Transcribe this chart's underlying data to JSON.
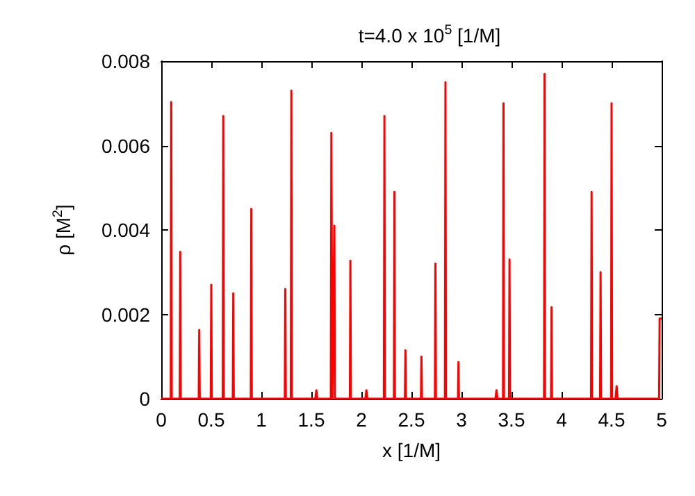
{
  "chart_data": {
    "type": "line",
    "title": "t=4.0 x 10$^{5}$ [1/M]",
    "xlabel": "x [1/M]",
    "ylabel": "ρ [M$^{2}$]",
    "x": [
      0,
      0.095,
      0.1,
      0.105,
      0.185,
      0.19,
      0.195,
      0.375,
      0.38,
      0.385,
      0.495,
      0.5,
      0.505,
      0.615,
      0.62,
      0.625,
      0.715,
      0.72,
      0.725,
      0.895,
      0.9,
      0.905,
      1.235,
      1.24,
      1.245,
      1.295,
      1.3,
      1.305,
      1.54,
      1.55,
      1.56,
      1.695,
      1.7,
      1.71,
      1.73,
      1.735,
      1.885,
      1.89,
      1.895,
      2.04,
      2.05,
      2.06,
      2.225,
      2.23,
      2.235,
      2.325,
      2.33,
      2.335,
      2.435,
      2.44,
      2.445,
      2.595,
      2.6,
      2.605,
      2.735,
      2.74,
      2.745,
      2.835,
      2.84,
      2.845,
      2.965,
      2.97,
      2.975,
      3.34,
      3.35,
      3.36,
      3.415,
      3.42,
      3.425,
      3.475,
      3.48,
      3.485,
      3.825,
      3.83,
      3.835,
      3.895,
      3.9,
      3.905,
      4.295,
      4.3,
      4.305,
      4.385,
      4.39,
      4.395,
      4.495,
      4.5,
      4.505,
      4.54,
      4.55,
      4.56,
      4.975,
      4.98,
      5
    ],
    "series": [
      {
        "color": "#ff0000",
        "values": [
          0,
          0,
          0.00703,
          0,
          0,
          0.00348,
          0,
          0,
          0.00163,
          0,
          0,
          0.0027,
          0,
          0,
          0.0067,
          0,
          0,
          0.0025,
          0,
          0,
          0.0045,
          0,
          0,
          0.0026,
          0,
          0,
          0.0073,
          0,
          0,
          0.0002,
          0,
          0,
          0.0063,
          0,
          0.0041,
          0,
          0,
          0.00327,
          0,
          0,
          0.0002,
          0,
          0,
          0.0067,
          0,
          0,
          0.0049,
          0,
          0,
          0.00115,
          0,
          0,
          0.001,
          0,
          0,
          0.0032,
          0,
          0,
          0.0075,
          0,
          0,
          0.00087,
          0,
          0,
          0.0002,
          0,
          0,
          0.007,
          0,
          0,
          0.0033,
          0,
          0,
          0.0077,
          0,
          0,
          0.00217,
          0,
          0,
          0.0049,
          0,
          0,
          0.003,
          0,
          0,
          0.007,
          0,
          0,
          0.0003,
          0,
          0,
          0.0019,
          0.0019
        ]
      }
    ],
    "xlim": [
      0,
      5
    ],
    "xticks": [
      0,
      0.5,
      1,
      1.5,
      2,
      2.5,
      3,
      3.5,
      4,
      4.5,
      5
    ],
    "ylim": [
      0,
      0.008
    ],
    "yticks": [
      0,
      0.002,
      0.004,
      0.006,
      0.008
    ],
    "grid": false,
    "marker": "none",
    "line_style": "solid"
  }
}
